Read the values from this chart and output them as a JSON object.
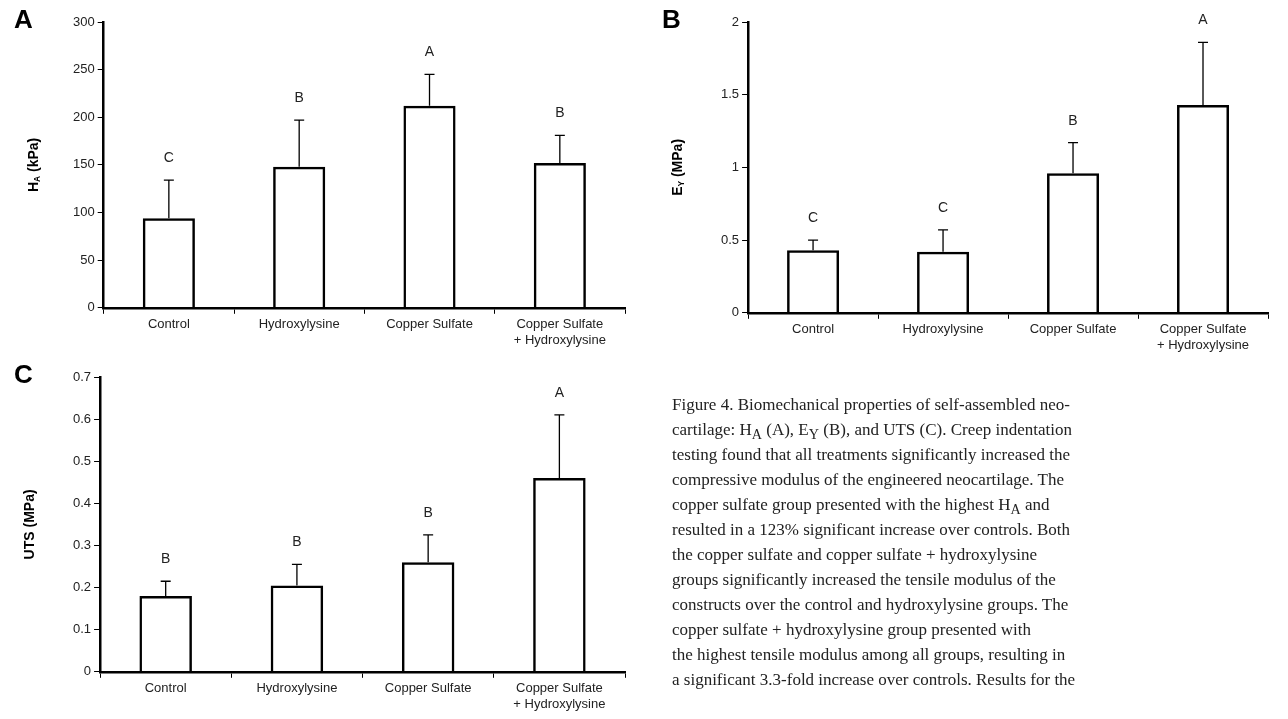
{
  "chart_data": [
    {
      "type": "bar",
      "title": "A",
      "ylabel": "H$_{A}$ (kPa)",
      "categories": [
        "Control",
        "Hydroxylysine",
        "Copper Sulfate",
        "Copper Sulfate\n+ Hydroxylysine"
      ],
      "values": [
        94,
        148,
        212,
        152
      ],
      "errors": [
        [
          94,
          134
        ],
        [
          148,
          197
        ],
        [
          212,
          245
        ],
        [
          152,
          181
        ]
      ],
      "color": "#000000",
      "ylim": [
        0,
        300
      ],
      "yticks": [
        0,
        50,
        100,
        150,
        200,
        250,
        300
      ],
      "grid": false,
      "legend": false,
      "annotations": [
        "C",
        "B",
        "A",
        "B"
      ]
    },
    {
      "type": "bar",
      "title": "B",
      "ylabel": "E$_{Y}$ (MPa)",
      "categories": [
        "Control",
        "Hydroxylysine",
        "Copper Sulfate",
        "Copper Sulfate\n+ Hydroxylysine"
      ],
      "values": [
        0.43,
        0.42,
        0.96,
        1.43
      ],
      "errors": [
        [
          0.43,
          0.5
        ],
        [
          0.42,
          0.57
        ],
        [
          0.96,
          1.17
        ],
        [
          1.43,
          1.86
        ]
      ],
      "color": "#000000",
      "ylim": [
        0,
        2
      ],
      "yticks": [
        0,
        0.5,
        1,
        1.5,
        2
      ],
      "grid": false,
      "legend": false,
      "annotations": [
        "C",
        "C",
        "B",
        "A"
      ]
    },
    {
      "type": "bar",
      "title": "C",
      "ylabel": "UTS (MPa)",
      "categories": [
        "Control",
        "Hydroxylysine",
        "Copper Sulfate",
        "Copper Sulfate\n+ Hydroxylysine"
      ],
      "values": [
        0.18,
        0.205,
        0.26,
        0.46
      ],
      "errors": [
        [
          0.18,
          0.215
        ],
        [
          0.205,
          0.255
        ],
        [
          0.26,
          0.325
        ],
        [
          0.46,
          0.61
        ]
      ],
      "color": "#000000",
      "ylim": [
        0,
        0.7
      ],
      "yticks": [
        0,
        0.1,
        0.2,
        0.3,
        0.4,
        0.5,
        0.6,
        0.7
      ],
      "grid": false,
      "legend": false,
      "annotations": [
        "B",
        "B",
        "B",
        "A"
      ]
    },
    {
      "type": "other",
      "annotations": [
        "Figure 4. Biomechanical properties of self-assembled neo-",
        "cartilage: H$_{A}$ (A), E$_{Y}$ (B), and UTS (C). Creep indentation",
        "testing found that all treatments significantly increased the",
        "compressive modulus of the engineered neocartilage. The",
        "copper sulfate group presented with the highest H$_{A}$ and",
        "resulted in a 123% significant increase over controls. Both",
        "the copper sulfate and copper sulfate + hydroxylysine",
        "groups significantly increased the tensile modulus of the",
        "constructs over the control and hydroxylysine groups. The",
        "copper sulfate + hydroxylysine group presented with",
        "the highest tensile modulus among all groups, resulting in",
        "a significant 3.3-fold increase over controls. Results for the"
      ]
    }
  ]
}
